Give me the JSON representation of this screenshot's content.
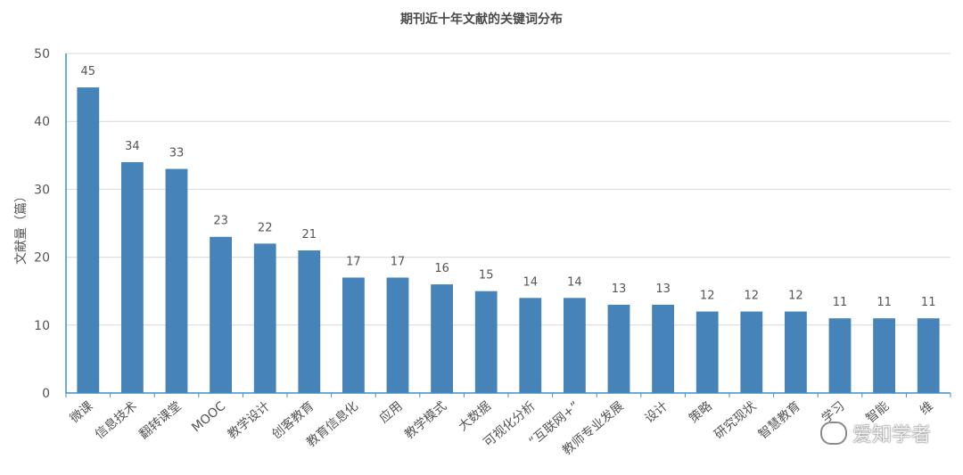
{
  "chart_data": {
    "type": "bar",
    "title": "期刊近十年文献的关键词分布",
    "ylabel": "文献量（篇）",
    "xlabel": "",
    "ylim": [
      0,
      50
    ],
    "yticks": [
      0,
      10,
      20,
      30,
      40,
      50
    ],
    "grid": true,
    "categories": [
      "微课",
      "信息技术",
      "翻转课堂",
      "MOOC",
      "教学设计",
      "创客教育",
      "教育信息化",
      "应用",
      "教学模式",
      "大数据",
      "可视化分析",
      "“互联网+”",
      "教师专业发展",
      "设计",
      "策略",
      "研究现状",
      "智慧教育",
      "学习",
      "智能",
      "维"
    ],
    "values": [
      45,
      34,
      33,
      23,
      22,
      21,
      17,
      17,
      16,
      15,
      14,
      14,
      13,
      13,
      12,
      12,
      12,
      11,
      11,
      11
    ],
    "bar_color": "#4683b8",
    "axis_color": "#3f8fc5",
    "grid_color": "#d9d9d9"
  },
  "watermark": {
    "text": "爱知学者",
    "icon": "wechat-icon"
  }
}
